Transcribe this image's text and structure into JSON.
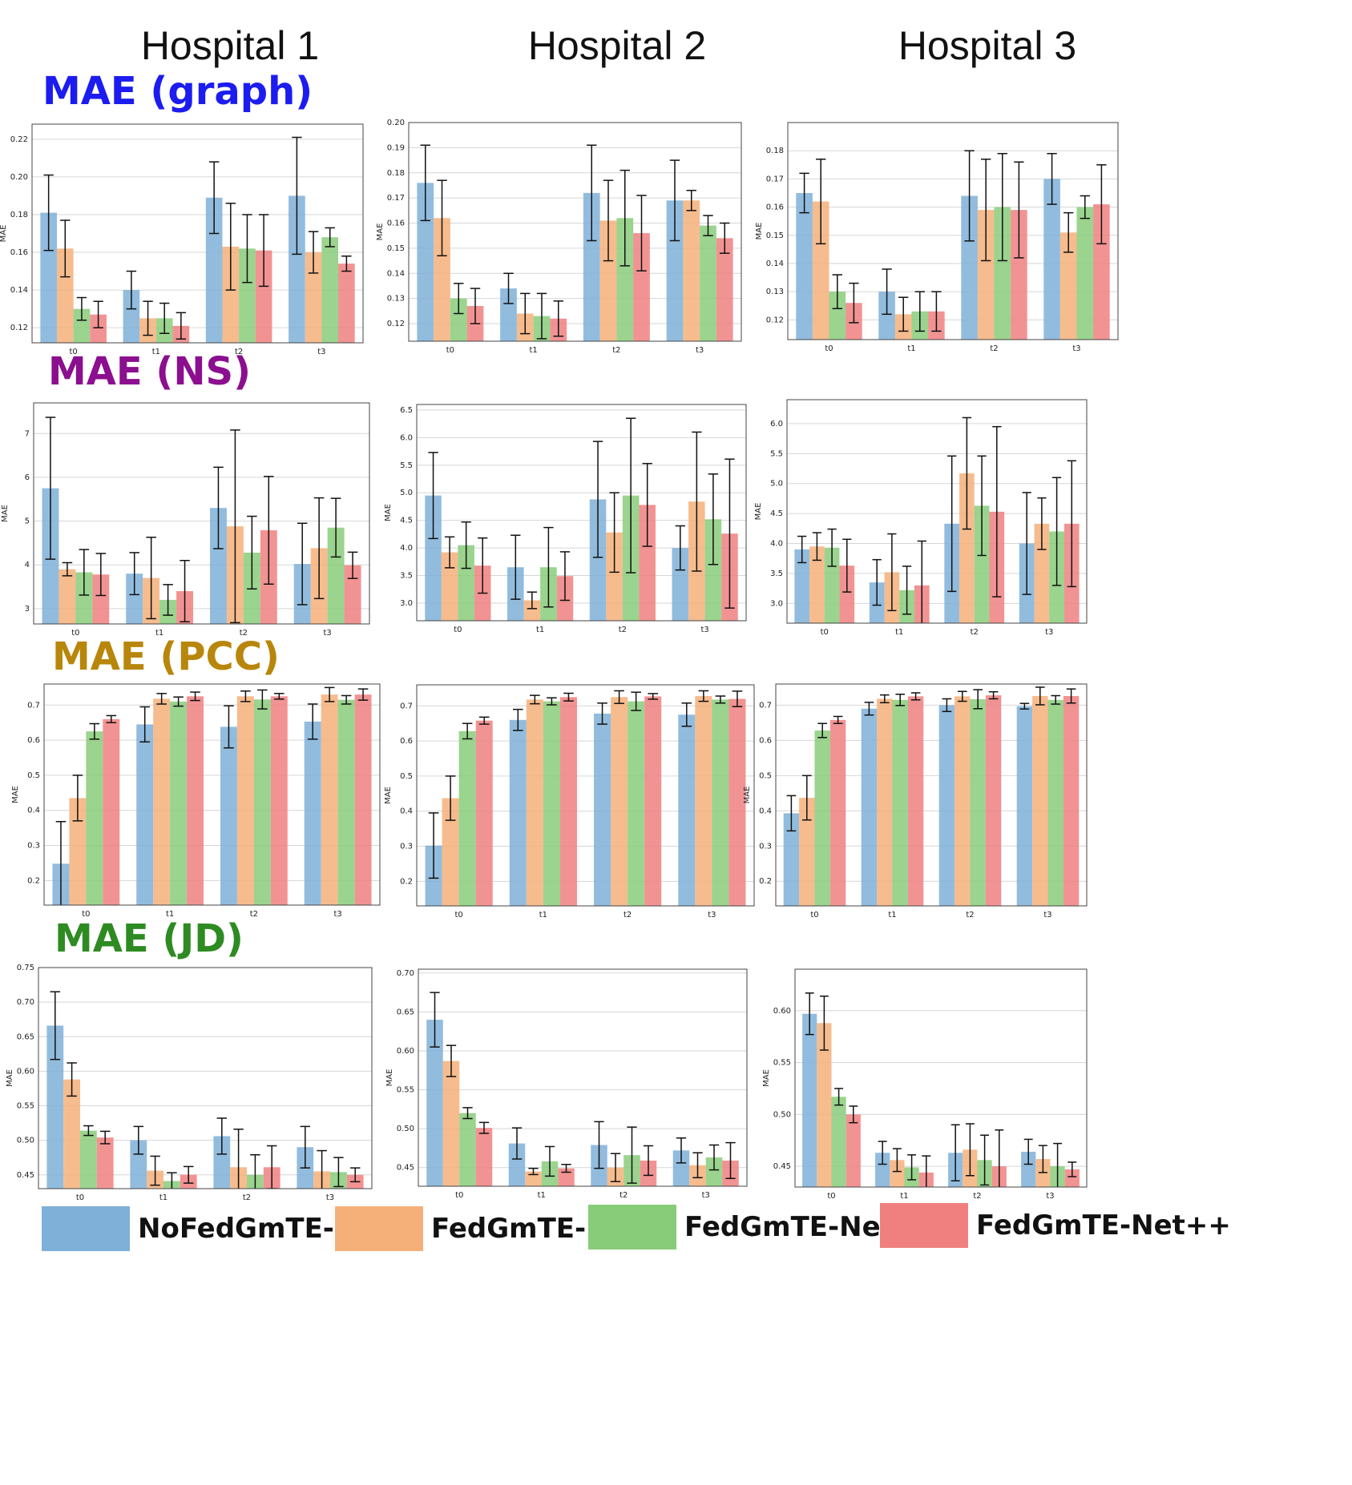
{
  "hospitals": [
    "Hospital 1",
    "Hospital 2",
    "Hospital 3"
  ],
  "row_titles": [
    {
      "text": "MAE (graph)",
      "color": "#1c1cf0"
    },
    {
      "text": "MAE (NS)",
      "color": "#8b0f8f"
    },
    {
      "text": "MAE (PCC)",
      "color": "#b8860b"
    },
    {
      "text": "MAE (JD)",
      "color": "#2e8b22"
    }
  ],
  "legend": [
    {
      "label": "NoFedGmTE-Net",
      "color": "#7fb0d8"
    },
    {
      "label": "FedGmTE-Net",
      "color": "#f5b07a"
    },
    {
      "label": "FedGmTE-Net+",
      "color": "#88cc7a"
    },
    {
      "label": "FedGmTE-Net++",
      "color": "#f08080"
    }
  ],
  "chart_data": [
    {
      "id": "graph-h1",
      "type": "bar",
      "ylabel": "MAE",
      "categories": [
        "t0",
        "t1",
        "t2",
        "t3"
      ],
      "ylim": [
        0.112,
        0.228
      ],
      "yticks": [
        "0.12",
        "0.14",
        "0.16",
        "0.18",
        "0.20",
        "0.22"
      ],
      "series": [
        {
          "name": "NoFedGmTE-Net",
          "values": [
            0.181,
            0.14,
            0.189,
            0.19
          ],
          "errors": [
            0.02,
            0.01,
            0.019,
            0.031
          ]
        },
        {
          "name": "FedGmTE-Net",
          "values": [
            0.162,
            0.125,
            0.163,
            0.16
          ],
          "errors": [
            0.015,
            0.009,
            0.023,
            0.011
          ]
        },
        {
          "name": "FedGmTE-Net+",
          "values": [
            0.13,
            0.125,
            0.162,
            0.168
          ],
          "errors": [
            0.006,
            0.008,
            0.018,
            0.005
          ]
        },
        {
          "name": "FedGmTE-Net++",
          "values": [
            0.127,
            0.121,
            0.161,
            0.154
          ],
          "errors": [
            0.007,
            0.007,
            0.019,
            0.004
          ]
        }
      ]
    },
    {
      "id": "graph-h2",
      "type": "bar",
      "ylabel": "MAE",
      "categories": [
        "t0",
        "t1",
        "t2",
        "t3"
      ],
      "ylim": [
        0.113,
        0.2
      ],
      "yticks": [
        "0.12",
        "0.13",
        "0.14",
        "0.15",
        "0.16",
        "0.17",
        "0.18",
        "0.19",
        "0.20"
      ],
      "series": [
        {
          "name": "NoFedGmTE-Net",
          "values": [
            0.176,
            0.134,
            0.172,
            0.169
          ],
          "errors": [
            0.015,
            0.006,
            0.019,
            0.016
          ]
        },
        {
          "name": "FedGmTE-Net",
          "values": [
            0.162,
            0.124,
            0.161,
            0.169
          ],
          "errors": [
            0.015,
            0.008,
            0.016,
            0.004
          ]
        },
        {
          "name": "FedGmTE-Net+",
          "values": [
            0.13,
            0.123,
            0.162,
            0.159
          ],
          "errors": [
            0.006,
            0.009,
            0.019,
            0.004
          ]
        },
        {
          "name": "FedGmTE-Net++",
          "values": [
            0.127,
            0.122,
            0.156,
            0.154
          ],
          "errors": [
            0.007,
            0.007,
            0.015,
            0.006
          ]
        }
      ]
    },
    {
      "id": "graph-h3",
      "type": "bar",
      "ylabel": "MAE",
      "categories": [
        "t0",
        "t1",
        "t2",
        "t3"
      ],
      "ylim": [
        0.113,
        0.19
      ],
      "yticks": [
        "0.12",
        "0.13",
        "0.14",
        "0.15",
        "0.16",
        "0.17",
        "0.18"
      ],
      "series": [
        {
          "name": "NoFedGmTE-Net",
          "values": [
            0.165,
            0.13,
            0.164,
            0.17
          ],
          "errors": [
            0.007,
            0.008,
            0.016,
            0.009
          ]
        },
        {
          "name": "FedGmTE-Net",
          "values": [
            0.162,
            0.122,
            0.159,
            0.151
          ],
          "errors": [
            0.015,
            0.006,
            0.018,
            0.007
          ]
        },
        {
          "name": "FedGmTE-Net+",
          "values": [
            0.13,
            0.123,
            0.16,
            0.16
          ],
          "errors": [
            0.006,
            0.007,
            0.019,
            0.004
          ]
        },
        {
          "name": "FedGmTE-Net++",
          "values": [
            0.126,
            0.123,
            0.159,
            0.161
          ],
          "errors": [
            0.007,
            0.007,
            0.017,
            0.014
          ]
        }
      ]
    },
    {
      "id": "ns-h1",
      "type": "bar",
      "ylabel": "MAE",
      "categories": [
        "t0",
        "t1",
        "t2",
        "t3"
      ],
      "ylim": [
        2.65,
        7.7
      ],
      "yticks": [
        "3",
        "4",
        "5",
        "6",
        "7"
      ],
      "series": [
        {
          "name": "NoFedGmTE-Net",
          "values": [
            5.75,
            3.8,
            5.3,
            4.02
          ],
          "errors": [
            1.62,
            0.48,
            0.93,
            0.93
          ]
        },
        {
          "name": "FedGmTE-Net",
          "values": [
            3.9,
            3.7,
            4.88,
            4.38
          ],
          "errors": [
            0.15,
            0.93,
            2.2,
            1.15
          ]
        },
        {
          "name": "FedGmTE-Net+",
          "values": [
            3.83,
            3.2,
            4.28,
            4.85
          ],
          "errors": [
            0.52,
            0.35,
            0.83,
            0.67
          ]
        },
        {
          "name": "FedGmTE-Net++",
          "values": [
            3.78,
            3.4,
            4.79,
            3.99
          ],
          "errors": [
            0.48,
            0.7,
            1.23,
            0.3
          ]
        }
      ]
    },
    {
      "id": "ns-h2",
      "type": "bar",
      "ylabel": "MAE",
      "categories": [
        "t0",
        "t1",
        "t2",
        "t3"
      ],
      "ylim": [
        2.68,
        6.6
      ],
      "yticks": [
        "3.0",
        "3.5",
        "4.0",
        "4.5",
        "5.0",
        "5.5",
        "6.0",
        "6.5"
      ],
      "series": [
        {
          "name": "NoFedGmTE-Net",
          "values": [
            4.95,
            3.65,
            4.88,
            4.0
          ],
          "errors": [
            0.78,
            0.58,
            1.05,
            0.4
          ]
        },
        {
          "name": "FedGmTE-Net",
          "values": [
            3.92,
            3.05,
            4.28,
            4.84
          ],
          "errors": [
            0.28,
            0.15,
            0.72,
            1.26
          ]
        },
        {
          "name": "FedGmTE-Net+",
          "values": [
            4.05,
            3.65,
            4.95,
            4.52
          ],
          "errors": [
            0.42,
            0.72,
            1.4,
            0.82
          ]
        },
        {
          "name": "FedGmTE-Net++",
          "values": [
            3.68,
            3.49,
            4.78,
            4.26
          ],
          "errors": [
            0.5,
            0.44,
            0.75,
            1.35
          ]
        }
      ]
    },
    {
      "id": "ns-h3",
      "type": "bar",
      "ylabel": "MAE",
      "categories": [
        "t0",
        "t1",
        "t2",
        "t3"
      ],
      "ylim": [
        2.67,
        6.4
      ],
      "yticks": [
        "3.0",
        "3.5",
        "4.0",
        "4.5",
        "5.0",
        "5.5",
        "6.0"
      ],
      "series": [
        {
          "name": "NoFedGmTE-Net",
          "values": [
            3.9,
            3.35,
            4.33,
            4.0
          ],
          "errors": [
            0.22,
            0.38,
            1.13,
            0.85
          ]
        },
        {
          "name": "FedGmTE-Net",
          "values": [
            3.95,
            3.52,
            5.17,
            4.33
          ],
          "errors": [
            0.23,
            0.64,
            0.93,
            0.43
          ]
        },
        {
          "name": "FedGmTE-Net+",
          "values": [
            3.93,
            3.22,
            4.63,
            4.2
          ],
          "errors": [
            0.31,
            0.4,
            0.83,
            0.9
          ]
        },
        {
          "name": "FedGmTE-Net++",
          "values": [
            3.63,
            3.3,
            4.53,
            4.33
          ],
          "errors": [
            0.44,
            0.74,
            1.42,
            1.05
          ]
        }
      ]
    },
    {
      "id": "pcc-h1",
      "type": "bar",
      "ylabel": "MAE",
      "categories": [
        "t0",
        "t1",
        "t2",
        "t3"
      ],
      "ylim": [
        0.13,
        0.76
      ],
      "yticks": [
        "0.2",
        "0.3",
        "0.4",
        "0.5",
        "0.6",
        "0.7"
      ],
      "series": [
        {
          "name": "NoFedGmTE-Net",
          "values": [
            0.248,
            0.645,
            0.638,
            0.653
          ],
          "errors": [
            0.12,
            0.05,
            0.06,
            0.05
          ]
        },
        {
          "name": "FedGmTE-Net",
          "values": [
            0.435,
            0.718,
            0.725,
            0.73
          ],
          "errors": [
            0.065,
            0.015,
            0.015,
            0.02
          ]
        },
        {
          "name": "FedGmTE-Net+",
          "values": [
            0.625,
            0.71,
            0.716,
            0.715
          ],
          "errors": [
            0.022,
            0.013,
            0.027,
            0.012
          ]
        },
        {
          "name": "FedGmTE-Net++",
          "values": [
            0.66,
            0.725,
            0.725,
            0.73
          ],
          "errors": [
            0.01,
            0.012,
            0.008,
            0.016
          ]
        }
      ]
    },
    {
      "id": "pcc-h2",
      "type": "bar",
      "ylabel": "MAE",
      "categories": [
        "t0",
        "t1",
        "t2",
        "t3"
      ],
      "ylim": [
        0.13,
        0.76
      ],
      "yticks": [
        "0.2",
        "0.3",
        "0.4",
        "0.5",
        "0.6",
        "0.7"
      ],
      "series": [
        {
          "name": "NoFedGmTE-Net",
          "values": [
            0.302,
            0.66,
            0.678,
            0.675
          ],
          "errors": [
            0.093,
            0.03,
            0.03,
            0.033
          ]
        },
        {
          "name": "FedGmTE-Net",
          "values": [
            0.437,
            0.718,
            0.725,
            0.728
          ],
          "errors": [
            0.063,
            0.012,
            0.018,
            0.015
          ]
        },
        {
          "name": "FedGmTE-Net+",
          "values": [
            0.628,
            0.713,
            0.713,
            0.718
          ],
          "errors": [
            0.022,
            0.01,
            0.026,
            0.01
          ]
        },
        {
          "name": "FedGmTE-Net++",
          "values": [
            0.658,
            0.725,
            0.727,
            0.72
          ],
          "errors": [
            0.01,
            0.011,
            0.008,
            0.022
          ]
        }
      ]
    },
    {
      "id": "pcc-h3",
      "type": "bar",
      "ylabel": "MAE",
      "categories": [
        "t0",
        "t1",
        "t2",
        "t3"
      ],
      "ylim": [
        0.13,
        0.76
      ],
      "yticks": [
        "0.2",
        "0.3",
        "0.4",
        "0.5",
        "0.6",
        "0.7"
      ],
      "series": [
        {
          "name": "NoFedGmTE-Net",
          "values": [
            0.393,
            0.69,
            0.7,
            0.697
          ],
          "errors": [
            0.05,
            0.018,
            0.018,
            0.008
          ]
        },
        {
          "name": "FedGmTE-Net",
          "values": [
            0.437,
            0.718,
            0.725,
            0.726
          ],
          "errors": [
            0.063,
            0.011,
            0.014,
            0.025
          ]
        },
        {
          "name": "FedGmTE-Net+",
          "values": [
            0.628,
            0.715,
            0.717,
            0.715
          ],
          "errors": [
            0.02,
            0.016,
            0.027,
            0.012
          ]
        },
        {
          "name": "FedGmTE-Net++",
          "values": [
            0.658,
            0.725,
            0.728,
            0.726
          ],
          "errors": [
            0.01,
            0.01,
            0.01,
            0.02
          ]
        }
      ]
    },
    {
      "id": "jd-h1",
      "type": "bar",
      "ylabel": "MAE",
      "categories": [
        "t0",
        "t1",
        "t2",
        "t3"
      ],
      "ylim": [
        0.43,
        0.75
      ],
      "yticks": [
        "0.45",
        "0.50",
        "0.55",
        "0.60",
        "0.65",
        "0.70",
        "0.75"
      ],
      "series": [
        {
          "name": "NoFedGmTE-Net",
          "values": [
            0.666,
            0.5,
            0.506,
            0.49
          ],
          "errors": [
            0.049,
            0.02,
            0.026,
            0.03
          ]
        },
        {
          "name": "FedGmTE-Net",
          "values": [
            0.588,
            0.456,
            0.461,
            0.455
          ],
          "errors": [
            0.024,
            0.021,
            0.055,
            0.03
          ]
        },
        {
          "name": "FedGmTE-Net+",
          "values": [
            0.514,
            0.441,
            0.45,
            0.454
          ],
          "errors": [
            0.007,
            0.012,
            0.029,
            0.021
          ]
        },
        {
          "name": "FedGmTE-Net++",
          "values": [
            0.504,
            0.45,
            0.461,
            0.45
          ],
          "errors": [
            0.009,
            0.012,
            0.031,
            0.01
          ]
        }
      ]
    },
    {
      "id": "jd-h2",
      "type": "bar",
      "ylabel": "MAE",
      "categories": [
        "t0",
        "t1",
        "t2",
        "t3"
      ],
      "ylim": [
        0.426,
        0.705
      ],
      "yticks": [
        "0.45",
        "0.50",
        "0.55",
        "0.60",
        "0.65",
        "0.70"
      ],
      "series": [
        {
          "name": "NoFedGmTE-Net",
          "values": [
            0.64,
            0.481,
            0.479,
            0.472
          ],
          "errors": [
            0.035,
            0.02,
            0.03,
            0.016
          ]
        },
        {
          "name": "FedGmTE-Net",
          "values": [
            0.587,
            0.445,
            0.45,
            0.453
          ],
          "errors": [
            0.02,
            0.004,
            0.018,
            0.016
          ]
        },
        {
          "name": "FedGmTE-Net+",
          "values": [
            0.52,
            0.458,
            0.466,
            0.463
          ],
          "errors": [
            0.007,
            0.019,
            0.036,
            0.016
          ]
        },
        {
          "name": "FedGmTE-Net++",
          "values": [
            0.501,
            0.449,
            0.459,
            0.459
          ],
          "errors": [
            0.007,
            0.005,
            0.019,
            0.023
          ]
        }
      ]
    },
    {
      "id": "jd-h3",
      "type": "bar",
      "ylabel": "MAE",
      "categories": [
        "t0",
        "t1",
        "t2",
        "t3"
      ],
      "ylim": [
        0.43,
        0.64
      ],
      "yticks": [
        "0.45",
        "0.50",
        "0.55",
        "0.60"
      ],
      "series": [
        {
          "name": "NoFedGmTE-Net",
          "values": [
            0.597,
            0.463,
            0.463,
            0.464
          ],
          "errors": [
            0.02,
            0.011,
            0.027,
            0.012
          ]
        },
        {
          "name": "FedGmTE-Net",
          "values": [
            0.588,
            0.456,
            0.466,
            0.457
          ],
          "errors": [
            0.026,
            0.011,
            0.025,
            0.013
          ]
        },
        {
          "name": "FedGmTE-Net+",
          "values": [
            0.517,
            0.449,
            0.456,
            0.45
          ],
          "errors": [
            0.008,
            0.012,
            0.024,
            0.022
          ]
        },
        {
          "name": "FedGmTE-Net++",
          "values": [
            0.5,
            0.444,
            0.45,
            0.447
          ],
          "errors": [
            0.008,
            0.016,
            0.035,
            0.007
          ]
        }
      ]
    }
  ]
}
